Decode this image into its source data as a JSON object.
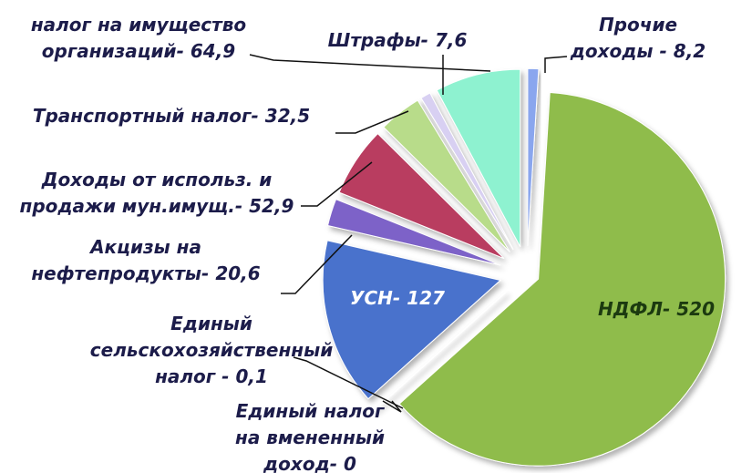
{
  "chart_data": {
    "type": "pie",
    "categories": [
      [
        "Прочие",
        "доходы -"
      ],
      [
        "НДФЛ-"
      ],
      [
        "Единый налог",
        "на вмененный",
        "доход-"
      ],
      [
        "Единый",
        "сельскохозяйственный",
        "налог -"
      ],
      [
        "УСН-"
      ],
      [
        "Акцизы на",
        "нефтепродукты-"
      ],
      [
        "Доходы от использ. и",
        "продажи мун.имущ.-"
      ],
      [
        "Транспортный налог-"
      ],
      [
        "Штрафы-"
      ],
      [
        "налог на имущество",
        "организаций-"
      ]
    ],
    "values": [
      8.2,
      520,
      0,
      0.1,
      127,
      20.6,
      52.9,
      32.5,
      7.6,
      64.9
    ],
    "value_labels": [
      "8,2",
      "520",
      "0",
      "0,1",
      "127",
      "20,6",
      "52,9",
      "32,5",
      "7,6",
      "64,9"
    ],
    "colors": [
      "#8aa6ee",
      "#8fbc4c",
      "#9ab0e0",
      "#7a96d8",
      "#4a72cc",
      "#7d62c8",
      "#b93c60",
      "#b8dc8a",
      "#d8d0f2",
      "#8ef2d0"
    ]
  }
}
